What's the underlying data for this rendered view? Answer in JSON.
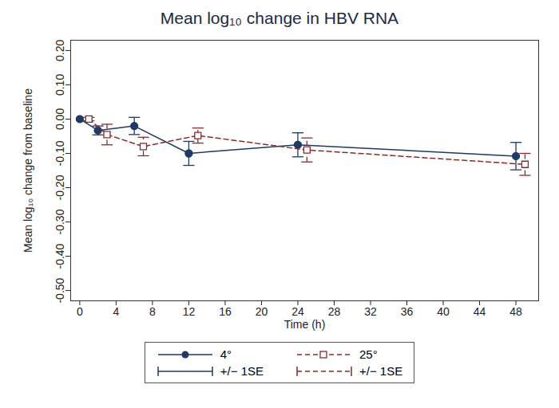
{
  "chart_data": {
    "type": "line",
    "title": "Mean log₁₀ change in HBV RNA",
    "x_label": "Time (h)",
    "y_label": "Mean log₁₀ change from baseline",
    "xlim": [
      -1,
      50.5
    ],
    "xticks": [
      0,
      4,
      8,
      12,
      16,
      20,
      24,
      28,
      32,
      36,
      40,
      44,
      48
    ],
    "ylim": [
      -0.53,
      0.23
    ],
    "yticks": [
      {
        "value": -0.5,
        "label": "-0.50"
      },
      {
        "value": -0.4,
        "label": "-0.40"
      },
      {
        "value": -0.3,
        "label": "-0.30"
      },
      {
        "value": -0.2,
        "label": "-0.20"
      },
      {
        "value": -0.1,
        "label": "-0.10"
      },
      {
        "value": 0,
        "label": "0.00"
      },
      {
        "value": 0.1,
        "label": "0.10"
      },
      {
        "value": 0.2,
        "label": "0.20"
      }
    ],
    "grid": false,
    "legend": "bottom",
    "error_label": "+/− 1SE",
    "series": [
      {
        "name": "4°",
        "color": "#1f3864",
        "marker": "circle",
        "line_style": "solid",
        "x": [
          0,
          2,
          6,
          12,
          24,
          48
        ],
        "values": [
          0,
          -0.033,
          -0.02,
          -0.1,
          -0.075,
          -0.108
        ],
        "se": [
          null,
          0.013,
          0.025,
          0.035,
          0.035,
          0.04
        ]
      },
      {
        "name": "25°",
        "color": "#8b2a2a",
        "marker": "square",
        "line_style": "dashed",
        "x": [
          1,
          3,
          7,
          13,
          25,
          49
        ],
        "values": [
          0,
          -0.045,
          -0.08,
          -0.048,
          -0.09,
          -0.132
        ],
        "se": [
          0.005,
          0.03,
          0.027,
          0.022,
          0.035,
          0.032
        ]
      }
    ]
  }
}
